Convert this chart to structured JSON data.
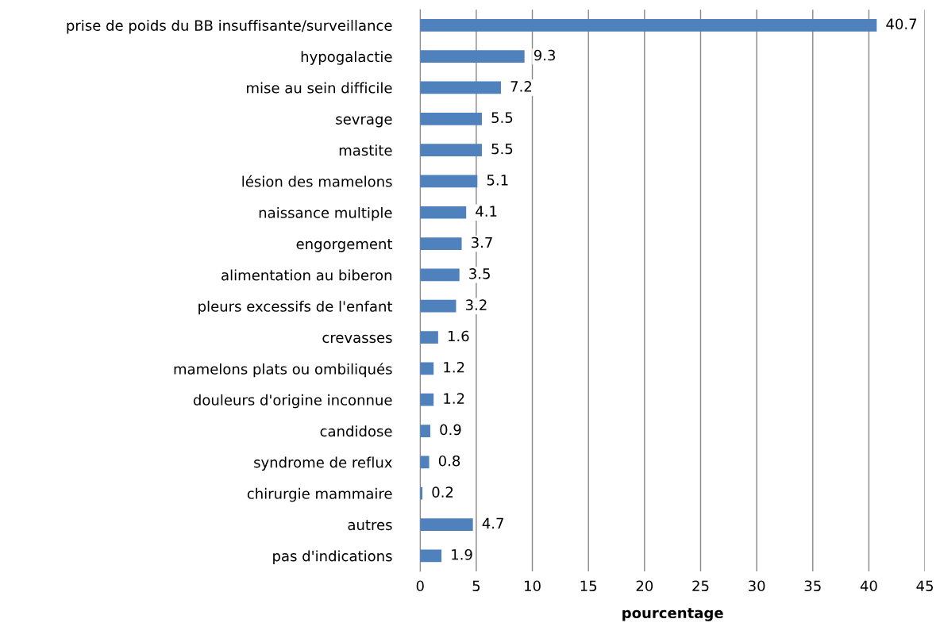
{
  "chart_data": {
    "type": "bar",
    "orientation": "horizontal",
    "xlabel": "pourcentage",
    "categories": [
      "prise de poids du BB insuffisante/surveillance",
      "hypogalactie",
      "mise au sein difficile",
      "sevrage",
      "mastite",
      "lésion des mamelons",
      "naissance multiple",
      "engorgement",
      "alimentation au biberon",
      "pleurs excessifs de l'enfant",
      "crevasses",
      "mamelons plats ou ombiliqués",
      "douleurs d'origine inconnue",
      "candidose",
      "syndrome de reflux",
      "chirurgie mammaire",
      "autres",
      "pas d'indications"
    ],
    "values": [
      40.7,
      9.3,
      7.2,
      5.5,
      5.5,
      5.1,
      4.1,
      3.7,
      3.5,
      3.2,
      1.6,
      1.2,
      1.2,
      0.9,
      0.8,
      0.2,
      4.7,
      1.9
    ],
    "color": "#4f81bd",
    "xlim": [
      0,
      45
    ],
    "xticks": [
      0,
      5,
      10,
      15,
      20,
      25,
      30,
      35,
      40,
      45
    ],
    "grid": "x",
    "data_labels": true
  }
}
